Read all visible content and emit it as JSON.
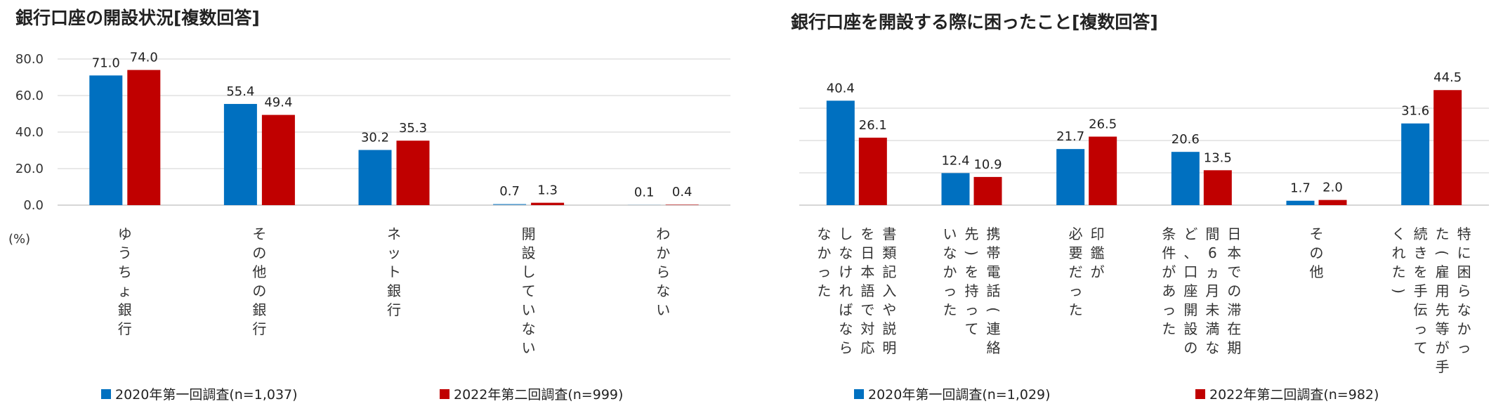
{
  "chart_data": [
    {
      "type": "bar",
      "title": "銀行口座の開設状況[複数回答]",
      "ylabel": "(%)",
      "ylim": [
        0,
        80
      ],
      "yticks": [
        "80.0",
        "60.0",
        "40.0",
        "20.0",
        "0.0"
      ],
      "grid": true,
      "legend_position": "bottom",
      "categories": [
        [
          "ゆうちょ銀行"
        ],
        [
          "その他の銀行"
        ],
        [
          "ネット銀行"
        ],
        [
          "開設していない"
        ],
        [
          "わからない"
        ]
      ],
      "series": [
        {
          "name": "2020年第一回調査(n=1,037)",
          "color": "#0070C0",
          "values": [
            71.0,
            55.4,
            30.2,
            0.7,
            0.1
          ],
          "labels": [
            "71.0",
            "55.4",
            "30.2",
            "0.7",
            "0.1"
          ]
        },
        {
          "name": "2022年第二回調査(n=999)",
          "color": "#C00000",
          "values": [
            74.0,
            49.4,
            35.3,
            1.3,
            0.4
          ],
          "labels": [
            "74.0",
            "49.4",
            "35.3",
            "1.3",
            "0.4"
          ]
        }
      ]
    },
    {
      "type": "bar",
      "title": "銀行口座を開設する際に困ったこと[複数回答]",
      "ylim": [
        0,
        50
      ],
      "grid": true,
      "legend_position": "bottom",
      "categories": [
        [
          "書類記入や説明",
          "を日本語で対応",
          "しなければなら",
          "なかった"
        ],
        [
          "携帯電話(連絡",
          "先)を持って",
          "いなかった"
        ],
        [
          "印鑑が",
          "必要だった"
        ],
        [
          "日本での滞在期",
          "間6ヵ月未満な",
          "ど、口座開設の",
          "条件があった"
        ],
        [
          "その他"
        ],
        [
          "特に困らなかっ",
          "た(雇用先等が手",
          "続きを手伝って",
          "くれた)"
        ]
      ],
      "series": [
        {
          "name": "2020年第一回調査(n=1,029)",
          "color": "#0070C0",
          "values": [
            40.4,
            12.4,
            21.7,
            20.6,
            1.7,
            31.6
          ],
          "labels": [
            "40.4",
            "12.4",
            "21.7",
            "20.6",
            "1.7",
            "31.6"
          ]
        },
        {
          "name": "2022年第二回調査(n=982)",
          "color": "#C00000",
          "values": [
            26.1,
            10.9,
            26.5,
            13.5,
            2.0,
            44.5
          ],
          "labels": [
            "26.1",
            "10.9",
            "26.5",
            "13.5",
            "2.0",
            "44.5"
          ]
        }
      ]
    }
  ]
}
